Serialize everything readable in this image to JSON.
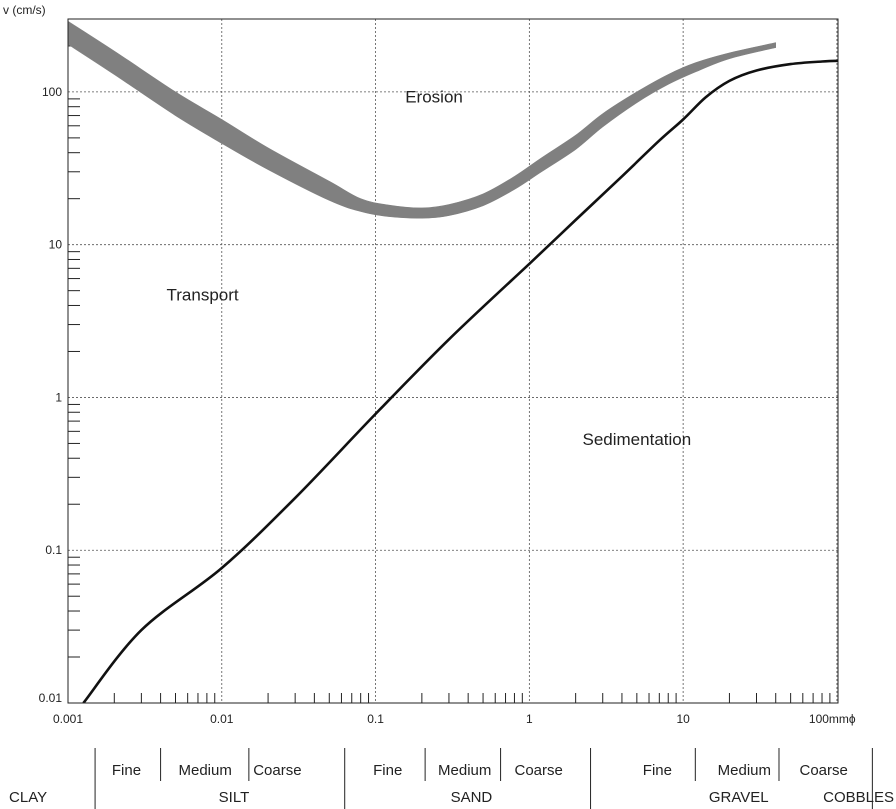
{
  "chart_data": {
    "type": "line",
    "title": "",
    "ylabel": "v (cm/s)",
    "xlabel": "",
    "x_unit_label": "mm",
    "x_unit_symbol": "ϕ",
    "x_scale": "log",
    "y_scale": "log",
    "xlim": [
      0.001,
      100
    ],
    "ylim": [
      0.01,
      300
    ],
    "x_tick_labels": [
      {
        "value": 0.001,
        "label": "0.001"
      },
      {
        "value": 0.01,
        "label": "0.01"
      },
      {
        "value": 0.1,
        "label": "0.1"
      },
      {
        "value": 1,
        "label": "1"
      },
      {
        "value": 10,
        "label": "10"
      },
      {
        "value": 100,
        "label": "100"
      }
    ],
    "y_tick_labels": [
      {
        "value": 0.01,
        "label": "0.01"
      },
      {
        "value": 0.1,
        "label": "0.1"
      },
      {
        "value": 1,
        "label": "1"
      },
      {
        "value": 10,
        "label": "10"
      },
      {
        "value": 100,
        "label": "100"
      }
    ],
    "grid": true,
    "series": [
      {
        "role": "erosion-band",
        "color": "#808080",
        "upper": {
          "x": [
            0.001,
            0.002,
            0.005,
            0.01,
            0.02,
            0.05,
            0.08,
            0.12,
            0.2,
            0.3,
            0.5,
            0.8,
            1.2,
            2,
            3,
            5,
            8,
            12,
            20,
            40
          ],
          "y": [
            290,
            185,
            100,
            66,
            43,
            26,
            20,
            18.2,
            17.4,
            18.3,
            21.5,
            28,
            37,
            52,
            72,
            100,
            130,
            155,
            180,
            210
          ]
        },
        "lower": {
          "x": [
            0.001,
            0.002,
            0.005,
            0.01,
            0.02,
            0.05,
            0.08,
            0.12,
            0.2,
            0.3,
            0.5,
            0.8,
            1.2,
            2,
            3,
            5,
            8,
            12,
            20,
            40
          ],
          "y": [
            205,
            130,
            70,
            46,
            31,
            19.5,
            16.5,
            15.3,
            14.9,
            15.5,
            18,
            23,
            30,
            42,
            59,
            85,
            112,
            135,
            165,
            195
          ]
        }
      },
      {
        "role": "sedimentation-line",
        "color": "#111111",
        "x": [
          0.00126,
          0.003,
          0.01,
          0.03,
          0.1,
          0.3,
          1,
          2,
          4,
          7,
          10,
          14,
          20,
          30,
          50,
          80,
          110
        ],
        "y": [
          0.01,
          0.03,
          0.0765,
          0.22,
          0.78,
          2.4,
          7.5,
          14.5,
          28,
          48,
          66,
          92,
          118,
          138,
          152,
          158,
          160
        ]
      }
    ],
    "annotations": [
      {
        "text": "Erosion",
        "x": 0.24,
        "y": 85
      },
      {
        "text": "Transport",
        "x": 0.0075,
        "y": 4.3
      },
      {
        "text": "Sedimentation",
        "x": 5.0,
        "y": 0.49
      }
    ],
    "grain_subclasses": [
      {
        "label": "Fine",
        "center": 0.0024
      },
      {
        "label": "Medium",
        "center": 0.0078
      },
      {
        "label": "Coarse",
        "center": 0.023
      },
      {
        "label": "Fine",
        "center": 0.12
      },
      {
        "label": "Medium",
        "center": 0.38
      },
      {
        "label": "Coarse",
        "center": 1.15
      },
      {
        "label": "Fine",
        "center": 6.8
      },
      {
        "label": "Medium",
        "center": 25
      },
      {
        "label": "Coarse",
        "center": 82
      }
    ],
    "grain_classes": [
      {
        "label": "CLAY",
        "center": 0.00055
      },
      {
        "label": "SILT",
        "center": 0.012
      },
      {
        "label": "SAND",
        "center": 0.42
      },
      {
        "label": "GRAVEL",
        "center": 23
      },
      {
        "label": "COBBLES",
        "center": 520
      }
    ],
    "grain_dividers_major": [
      0.0015,
      0.063,
      2.5,
      170
    ],
    "grain_dividers_minor": [
      0.004,
      0.015,
      0.21,
      0.65,
      12,
      42
    ]
  }
}
